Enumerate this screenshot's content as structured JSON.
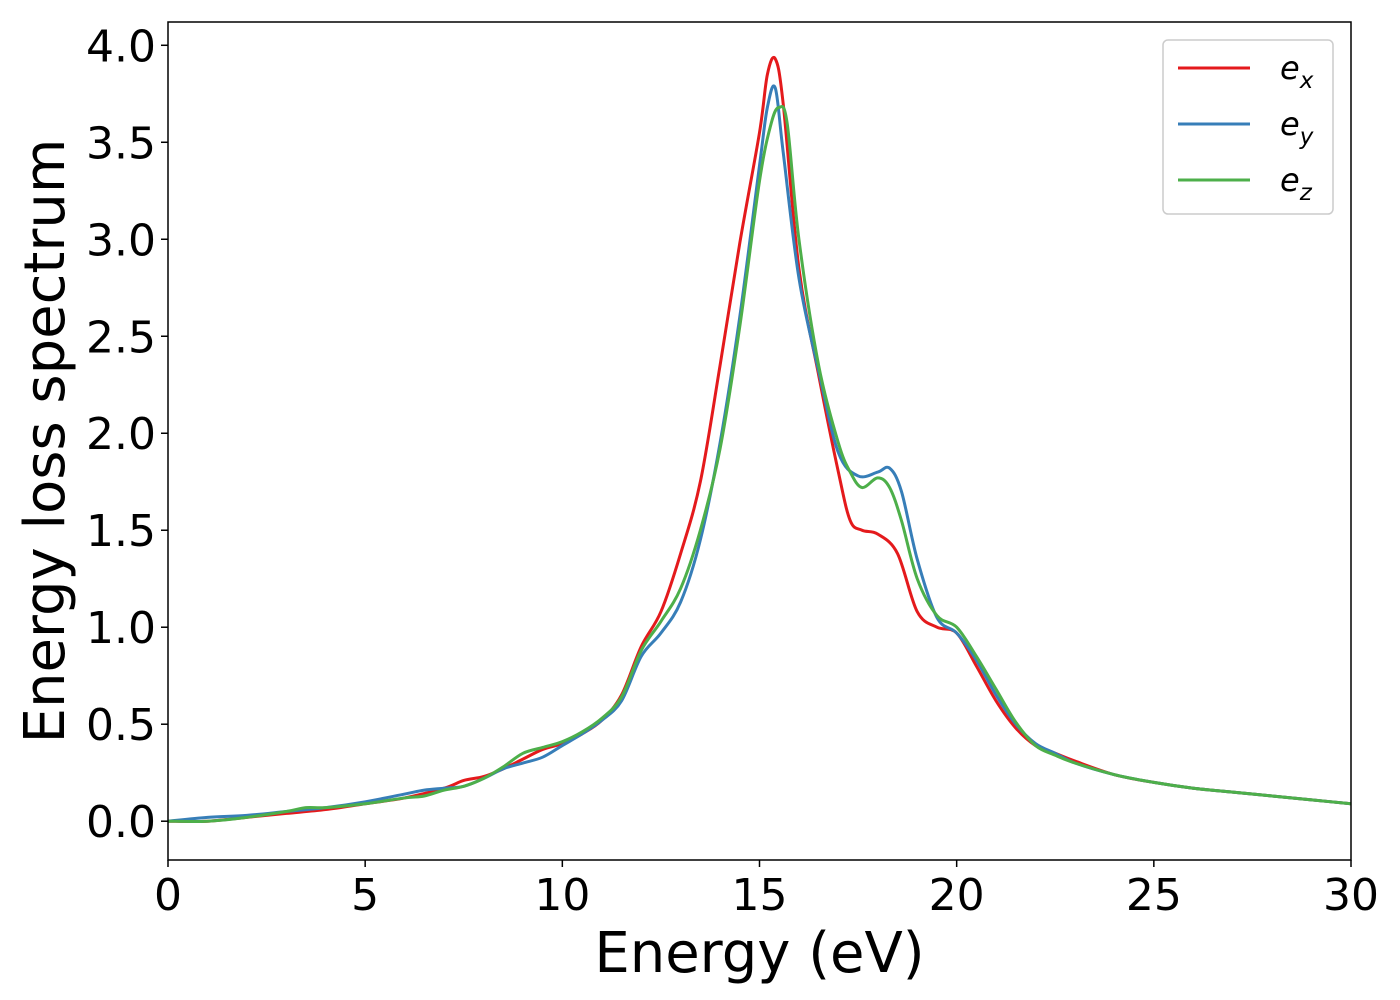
{
  "chart_data": {
    "type": "line",
    "title": "",
    "xlabel": "Energy (eV)",
    "ylabel": "Energy loss spectrum",
    "xlim": [
      0,
      30
    ],
    "ylim": [
      -0.2,
      4.12
    ],
    "xticks": [
      0,
      5,
      10,
      15,
      20,
      25,
      30
    ],
    "xtick_labels": [
      "0",
      "5",
      "10",
      "15",
      "20",
      "25",
      "30"
    ],
    "yticks": [
      0.0,
      0.5,
      1.0,
      1.5,
      2.0,
      2.5,
      3.0,
      3.5,
      4.0
    ],
    "ytick_labels": [
      "0.0",
      "0.5",
      "1.0",
      "1.5",
      "2.0",
      "2.5",
      "3.0",
      "3.5",
      "4.0"
    ],
    "grid": false,
    "legend_position": "top-right",
    "series": [
      {
        "name": "e",
        "subscript": "x",
        "color": "#e41a1c",
        "x": [
          0,
          1,
          2,
          3,
          4,
          5,
          6,
          7,
          7.5,
          8,
          8.5,
          9,
          9.5,
          10,
          10.5,
          11,
          11.5,
          12,
          12.5,
          13,
          13.5,
          14,
          14.5,
          15,
          15.2,
          15.4,
          15.6,
          16,
          16.5,
          17,
          17.3,
          17.6,
          18,
          18.5,
          19,
          19.5,
          20,
          20.5,
          21,
          21.5,
          22,
          22.5,
          23,
          24,
          25,
          26,
          27,
          28,
          29,
          30
        ],
        "y": [
          0.0,
          0.0,
          0.02,
          0.04,
          0.06,
          0.09,
          0.12,
          0.17,
          0.21,
          0.23,
          0.27,
          0.32,
          0.37,
          0.4,
          0.45,
          0.52,
          0.65,
          0.9,
          1.08,
          1.38,
          1.75,
          2.35,
          2.98,
          3.55,
          3.85,
          3.93,
          3.7,
          2.85,
          2.3,
          1.8,
          1.55,
          1.5,
          1.48,
          1.38,
          1.08,
          1.0,
          0.97,
          0.8,
          0.62,
          0.48,
          0.39,
          0.35,
          0.31,
          0.24,
          0.2,
          0.17,
          0.15,
          0.13,
          0.11,
          0.09
        ]
      },
      {
        "name": "e",
        "subscript": "y",
        "color": "#377eb8",
        "x": [
          0,
          1,
          2,
          3,
          4,
          5,
          6,
          6.5,
          7,
          7.5,
          8,
          8.5,
          9,
          9.5,
          10,
          10.5,
          11,
          11.5,
          12,
          12.5,
          13,
          13.5,
          14,
          14.5,
          15,
          15.2,
          15.4,
          15.6,
          16,
          16.5,
          17,
          17.5,
          18,
          18.3,
          18.6,
          19,
          19.5,
          20,
          20.5,
          21,
          21.5,
          22,
          22.5,
          23,
          24,
          25,
          26,
          27,
          28,
          29,
          30
        ],
        "y": [
          0.0,
          0.02,
          0.03,
          0.05,
          0.07,
          0.1,
          0.14,
          0.16,
          0.17,
          0.18,
          0.22,
          0.27,
          0.3,
          0.33,
          0.39,
          0.45,
          0.52,
          0.62,
          0.85,
          0.97,
          1.13,
          1.45,
          1.95,
          2.6,
          3.38,
          3.68,
          3.78,
          3.45,
          2.8,
          2.32,
          1.9,
          1.78,
          1.8,
          1.82,
          1.7,
          1.35,
          1.05,
          0.97,
          0.83,
          0.65,
          0.5,
          0.4,
          0.35,
          0.3,
          0.24,
          0.2,
          0.17,
          0.15,
          0.13,
          0.11,
          0.09
        ]
      },
      {
        "name": "e",
        "subscript": "z",
        "color": "#4daf4a",
        "x": [
          0,
          1,
          2,
          3,
          3.5,
          4,
          5,
          6,
          6.5,
          7,
          7.5,
          8,
          8.5,
          9,
          9.5,
          10,
          10.5,
          11,
          11.5,
          12,
          12.5,
          13,
          13.5,
          14,
          14.5,
          15,
          15.3,
          15.5,
          15.7,
          16,
          16.5,
          17,
          17.3,
          17.6,
          18,
          18.3,
          18.6,
          19,
          19.5,
          20,
          20.5,
          21,
          21.5,
          22,
          22.5,
          23,
          24,
          25,
          26,
          27,
          28,
          29,
          30
        ],
        "y": [
          0.0,
          0.0,
          0.02,
          0.05,
          0.07,
          0.07,
          0.09,
          0.12,
          0.13,
          0.16,
          0.18,
          0.22,
          0.28,
          0.35,
          0.38,
          0.41,
          0.46,
          0.53,
          0.64,
          0.88,
          1.03,
          1.2,
          1.5,
          1.92,
          2.55,
          3.3,
          3.6,
          3.68,
          3.6,
          3.0,
          2.35,
          1.95,
          1.8,
          1.72,
          1.77,
          1.72,
          1.55,
          1.25,
          1.06,
          1.0,
          0.85,
          0.68,
          0.51,
          0.39,
          0.34,
          0.3,
          0.24,
          0.2,
          0.17,
          0.15,
          0.13,
          0.11,
          0.09
        ]
      }
    ]
  }
}
